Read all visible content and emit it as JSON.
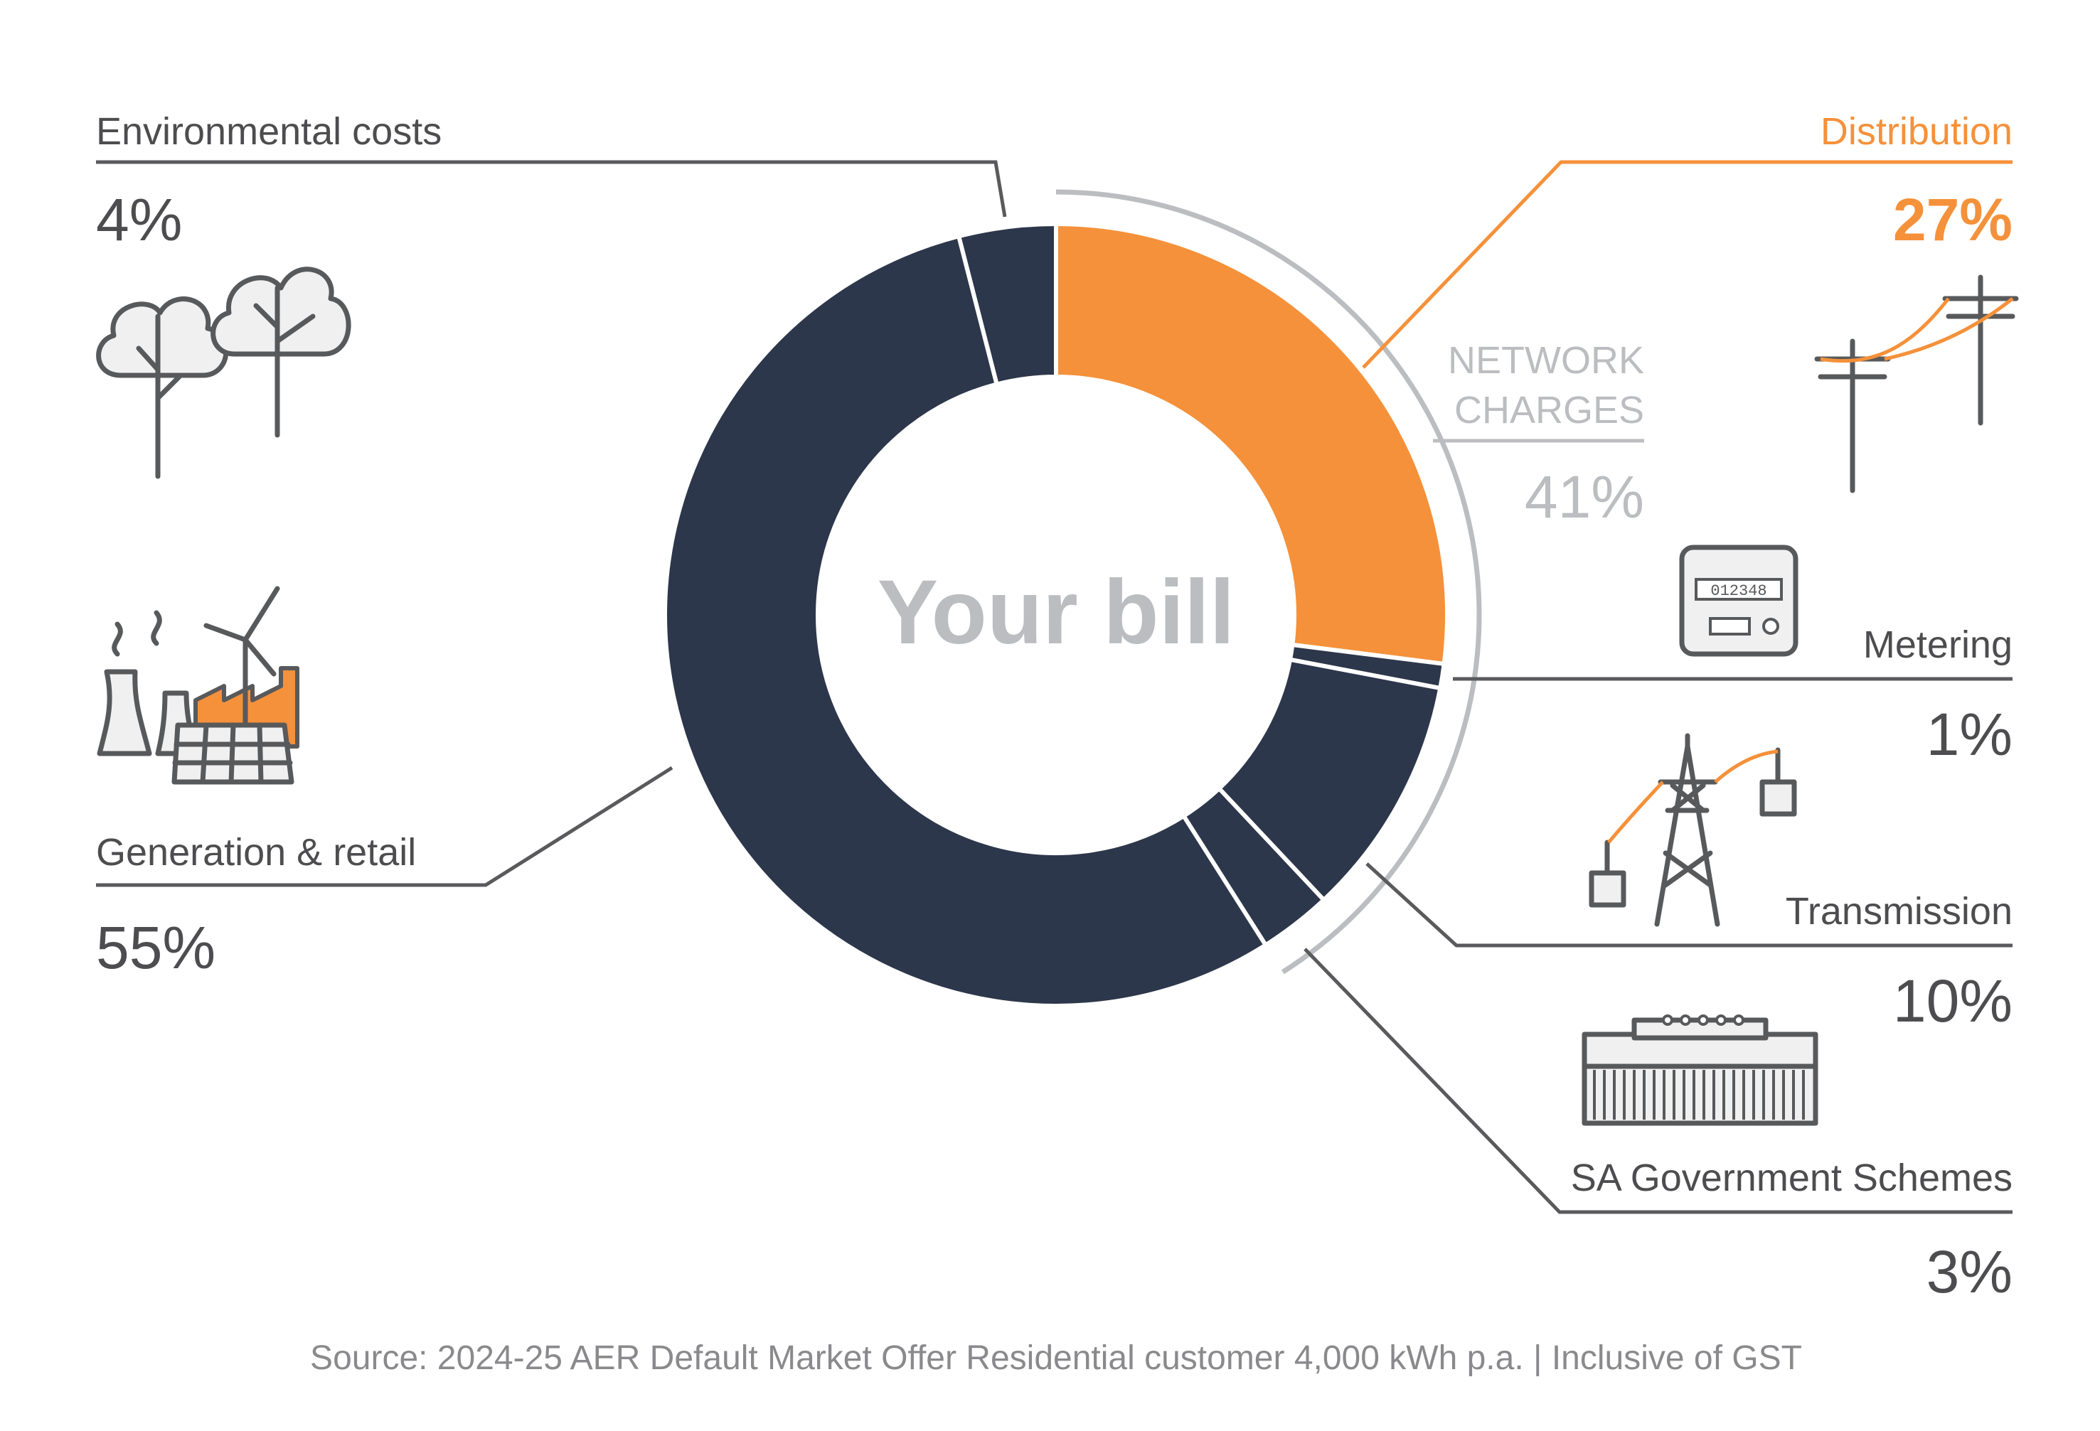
{
  "chart_data": {
    "type": "donut",
    "center_label": "Your bill",
    "slices": [
      {
        "name": "Distribution",
        "value": 27,
        "label": "Distribution",
        "pct_label": "27%",
        "color": "#f5913a",
        "group": "network"
      },
      {
        "name": "Metering",
        "value": 1,
        "label": "Metering",
        "pct_label": "1%",
        "color": "#2d374b",
        "group": "network"
      },
      {
        "name": "Transmission",
        "value": 10,
        "label": "Transmission",
        "pct_label": "10%",
        "color": "#2d374b",
        "group": "network"
      },
      {
        "name": "SA Government Schemes",
        "value": 3,
        "label": "SA Government Schemes",
        "pct_label": "3%",
        "color": "#2d374b",
        "group": "network"
      },
      {
        "name": "Generation & retail",
        "value": 55,
        "label": "Generation & retail",
        "pct_label": "55%",
        "color": "#2d374b"
      },
      {
        "name": "Environmental costs",
        "value": 4,
        "label": "Environmental costs",
        "pct_label": "4%",
        "color": "#2d374b"
      }
    ],
    "group": {
      "label_line1": "NETWORK",
      "label_line2": "CHARGES",
      "pct_label": "41%",
      "color": "#bcbdc0"
    },
    "highlight_color": "#f5913a",
    "dark_color": "#2d374b",
    "text_color": "#4d4d4f",
    "source": "Source: 2024-25 AER Default Market Offer Residential customer 4,000 kWh p.a. | Inclusive of GST"
  },
  "icons": {
    "environmental": "trees-icon",
    "generation": "power-station-wind-solar-icon",
    "distribution": "power-poles-icon",
    "metering": "electricity-meter-icon",
    "transmission": "transmission-tower-icon",
    "sa_government": "government-building-icon"
  },
  "meter_digits": "012348"
}
